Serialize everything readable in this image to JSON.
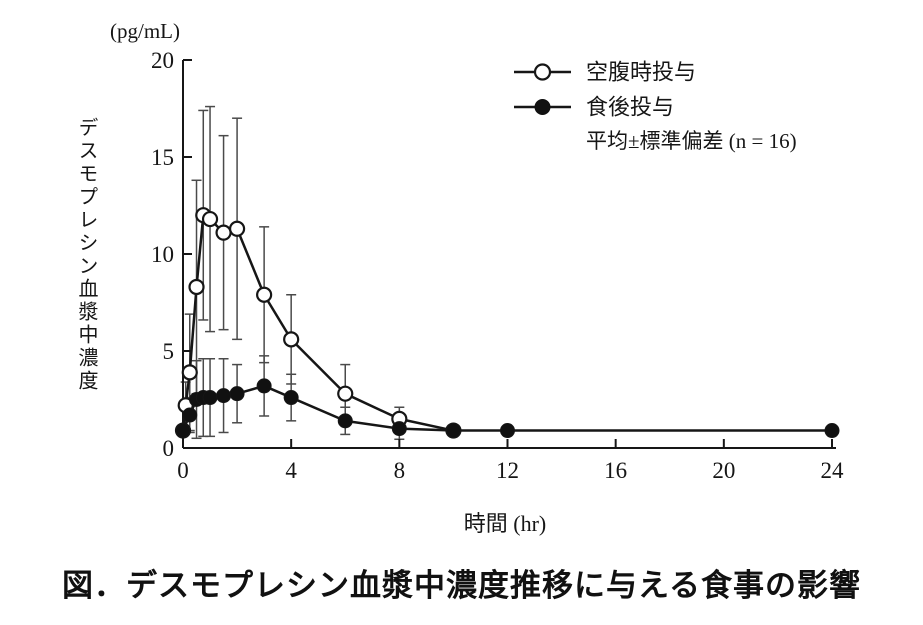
{
  "figure": {
    "caption": "図．デスモプレシン血漿中濃度推移に与える食事の影響"
  },
  "chart_data": {
    "type": "line",
    "y_unit_label": "(pg/mL)",
    "y_axis_label": "デスモプレシン血漿中濃度",
    "x_axis_label": "時間 (hr)",
    "legend_note": "平均±標準偏差 (n = 16)",
    "xlim": [
      0,
      24
    ],
    "ylim": [
      0,
      20
    ],
    "x_ticks": [
      0,
      4,
      8,
      12,
      16,
      20,
      24
    ],
    "y_ticks": [
      0,
      5,
      10,
      15,
      20
    ],
    "grid": false,
    "legend_position": "top-right-inside",
    "error_bars": "mean ± SD",
    "colors": {
      "line": "#161616",
      "error_bar": "#4a4a4a",
      "open_marker_fill": "#ffffff",
      "filled_marker_fill": "#111111"
    },
    "series": [
      {
        "name": "空腹時投与",
        "marker": "open-circle",
        "x": [
          0,
          0.1,
          0.25,
          0.5,
          0.75,
          1,
          1.5,
          2,
          3,
          4,
          6,
          8,
          10
        ],
        "y": [
          0.9,
          2.2,
          3.9,
          8.3,
          12.0,
          11.8,
          11.1,
          11.3,
          7.9,
          5.6,
          2.8,
          1.5,
          0.9
        ],
        "sd": [
          0,
          1.2,
          3.0,
          5.5,
          5.4,
          5.8,
          5.0,
          5.7,
          3.5,
          2.3,
          1.5,
          0.6,
          0
        ]
      },
      {
        "name": "食後投与",
        "marker": "filled-circle",
        "x": [
          0,
          0.25,
          0.5,
          0.75,
          1,
          1.5,
          2,
          3,
          4,
          6,
          8,
          10,
          12,
          24
        ],
        "y": [
          0.9,
          1.7,
          2.5,
          2.6,
          2.6,
          2.7,
          2.8,
          3.2,
          2.6,
          1.4,
          1.0,
          0.9,
          0.9,
          0.9
        ],
        "sd": [
          0,
          0.9,
          2.0,
          2.0,
          2.0,
          1.9,
          1.5,
          1.55,
          1.2,
          0.7,
          0.55,
          0,
          0,
          0
        ]
      }
    ]
  }
}
